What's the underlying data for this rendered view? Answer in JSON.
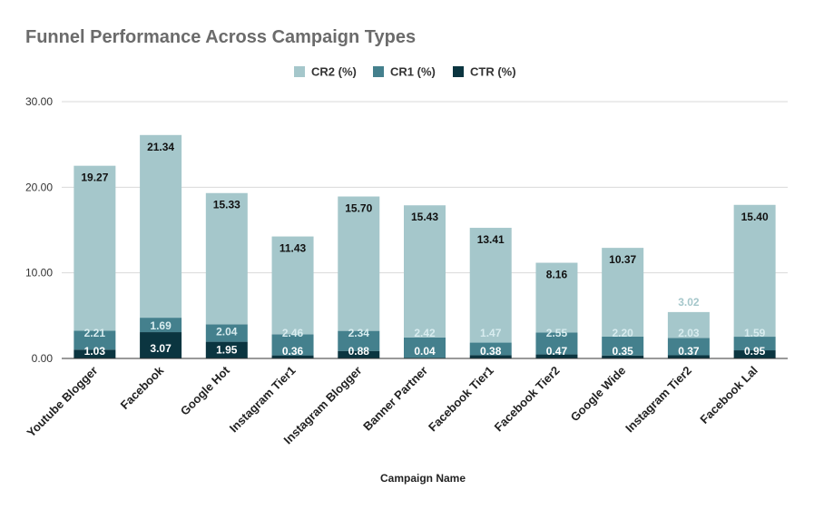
{
  "chart_data": {
    "type": "bar",
    "stacked": true,
    "title": "Funnel Performance Across Campaign Types",
    "xlabel": "Campaign Name",
    "ylabel": "",
    "ylim": [
      0,
      30
    ],
    "yticks": [
      "0.00",
      "10.00",
      "20.00",
      "30.00"
    ],
    "yticks_values": [
      0,
      10,
      20,
      30
    ],
    "grid": true,
    "legend_position": "top",
    "categories": [
      "Youtube Blogger",
      "Facebook",
      "Google Hot",
      "Instagram Tier1",
      "Instagram Blogger",
      "Banner Partner",
      "Facebook Tier1",
      "Facebook Tier2",
      "Google Wide",
      "Instagram Tier2",
      "Facebook Lal"
    ],
    "series": [
      {
        "name": "CTR (%)",
        "color": "#0b3540",
        "label_color": "#ffffff",
        "values": [
          1.03,
          3.07,
          1.95,
          0.36,
          0.88,
          0.04,
          0.38,
          0.47,
          0.35,
          0.37,
          0.95
        ]
      },
      {
        "name": "CR1 (%)",
        "color": "#44808d",
        "label_color": "#d8ecef",
        "values": [
          2.21,
          1.69,
          2.04,
          2.46,
          2.34,
          2.42,
          1.47,
          2.55,
          2.2,
          2.03,
          1.59
        ]
      },
      {
        "name": "CR2 (%)",
        "color": "#a5c7cb",
        "label_color": "#111111",
        "values": [
          19.27,
          21.34,
          15.33,
          11.43,
          15.7,
          15.43,
          13.41,
          8.16,
          10.37,
          3.02,
          15.4
        ]
      }
    ],
    "legend_order": [
      "CR2 (%)",
      "CR1 (%)",
      "CTR (%)"
    ]
  }
}
